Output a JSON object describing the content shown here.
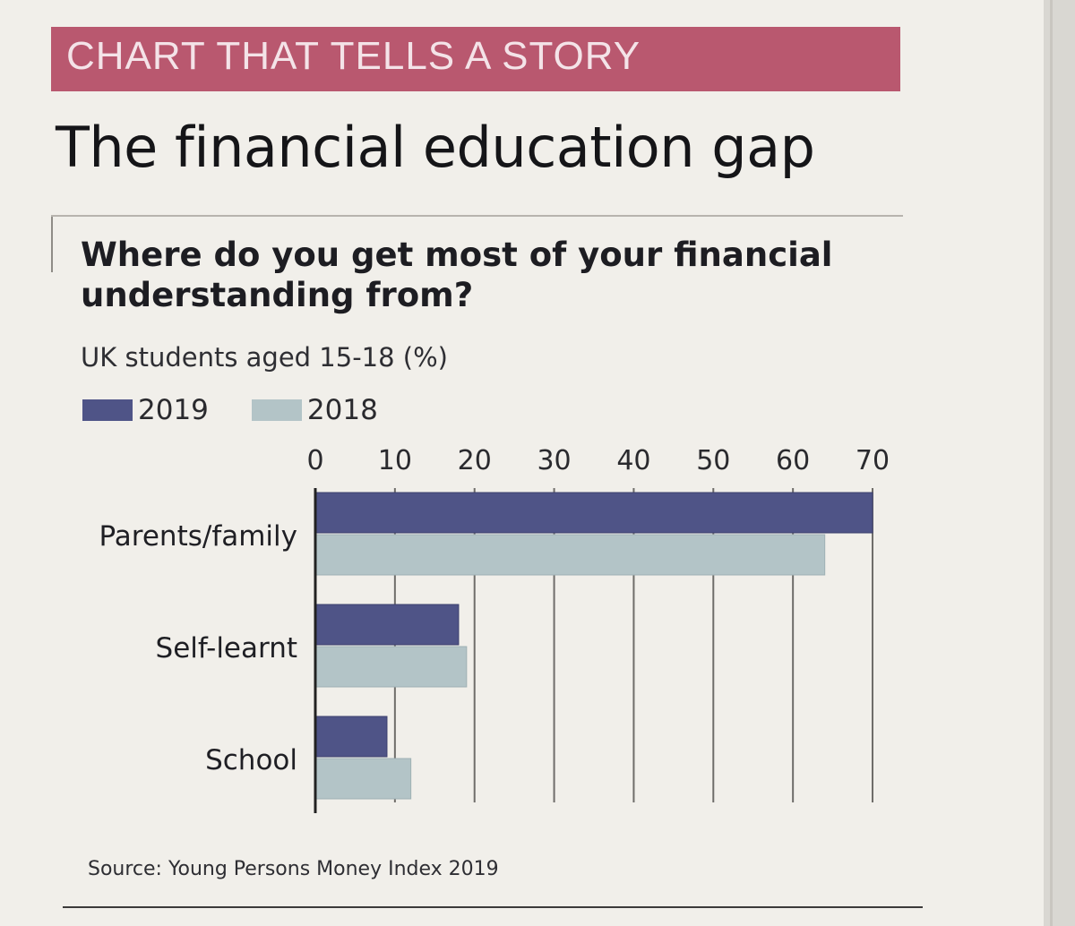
{
  "banner": {
    "label": "CHART THAT TELLS A STORY"
  },
  "headline": "The financial education gap",
  "source": "Source: Young Persons Money Index 2019",
  "colors": {
    "banner": "#b9586f",
    "series_2019": "#4f5487",
    "series_2018": "#b3c4c7"
  },
  "chart_data": {
    "type": "bar",
    "orientation": "horizontal",
    "title": "Where do you get most of your financial understanding from?",
    "subtitle": "UK students aged 15-18 (%)",
    "categories": [
      "Parents/family",
      "Self-learnt",
      "School"
    ],
    "series": [
      {
        "name": "2019",
        "values": [
          70,
          18,
          9
        ],
        "color": "#4f5487"
      },
      {
        "name": "2018",
        "values": [
          64,
          19,
          12
        ],
        "color": "#b3c4c7"
      }
    ],
    "xlim": [
      0,
      70
    ],
    "xticks": [
      "0",
      "10",
      "20",
      "30",
      "40",
      "50",
      "60",
      "70"
    ],
    "xtick_position": "top",
    "grid": true,
    "legend": "top-left"
  }
}
